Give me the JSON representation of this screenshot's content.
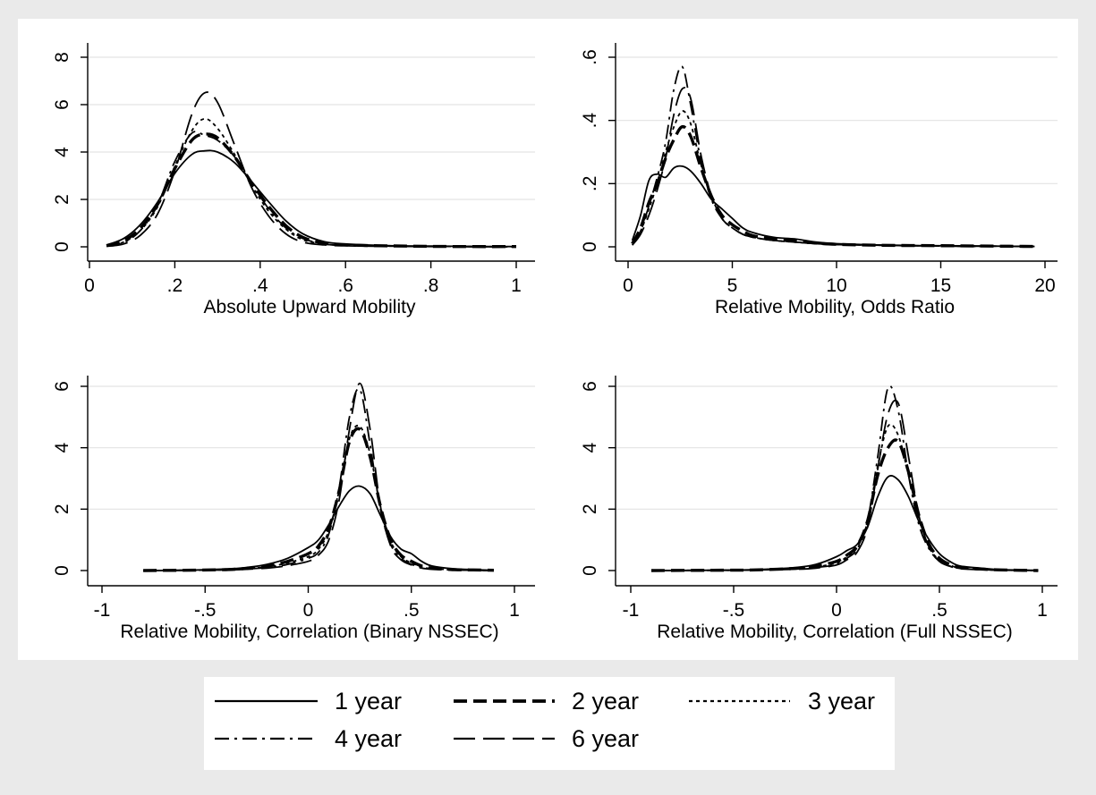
{
  "chart_data": [
    {
      "type": "line",
      "xlabel": "Absolute Upward Mobility",
      "ylabel": "",
      "xlim": [
        0,
        1
      ],
      "ylim": [
        0,
        8
      ],
      "xticks": [
        0,
        0.2,
        0.4,
        0.6,
        0.8,
        1
      ],
      "xtick_labels": [
        "0",
        ".2",
        ".4",
        ".6",
        ".8",
        "1"
      ],
      "yticks": [
        0,
        2,
        4,
        6,
        8
      ],
      "ytick_labels": [
        "0",
        "2",
        "4",
        "6",
        "8"
      ],
      "grid": "horizontal",
      "series": [
        {
          "name": "1 year",
          "x": [
            0.04,
            0.08,
            0.12,
            0.16,
            0.2,
            0.24,
            0.27,
            0.3,
            0.34,
            0.38,
            0.42,
            0.46,
            0.5,
            0.55,
            0.6,
            0.7,
            0.8,
            0.9,
            1.0
          ],
          "y": [
            0.08,
            0.35,
            0.95,
            1.9,
            3.1,
            3.9,
            4.05,
            4.0,
            3.55,
            2.75,
            1.9,
            1.1,
            0.55,
            0.22,
            0.12,
            0.05,
            0.03,
            0.02,
            0.01
          ]
        },
        {
          "name": "2 year",
          "x": [
            0.04,
            0.08,
            0.12,
            0.16,
            0.2,
            0.24,
            0.27,
            0.3,
            0.34,
            0.38,
            0.42,
            0.46,
            0.5,
            0.55,
            0.6,
            0.7,
            0.8,
            0.9,
            1.0
          ],
          "y": [
            0.05,
            0.25,
            0.8,
            1.8,
            3.3,
            4.5,
            4.75,
            4.6,
            3.8,
            2.7,
            1.7,
            0.9,
            0.4,
            0.15,
            0.08,
            0.04,
            0.02,
            0.01,
            0.01
          ]
        },
        {
          "name": "3 year",
          "x": [
            0.04,
            0.08,
            0.12,
            0.16,
            0.2,
            0.24,
            0.27,
            0.3,
            0.34,
            0.38,
            0.42,
            0.46,
            0.5,
            0.55,
            0.6,
            0.7,
            0.8,
            0.9,
            1.0
          ],
          "y": [
            0.04,
            0.2,
            0.7,
            1.7,
            3.4,
            4.9,
            5.4,
            5.0,
            3.9,
            2.6,
            1.5,
            0.75,
            0.3,
            0.12,
            0.06,
            0.03,
            0.02,
            0.01,
            0.0
          ]
        },
        {
          "name": "4 year",
          "x": [
            0.04,
            0.08,
            0.12,
            0.16,
            0.2,
            0.24,
            0.27,
            0.3,
            0.34,
            0.38,
            0.42,
            0.46,
            0.5,
            0.55,
            0.6,
            0.7,
            0.8,
            0.9,
            1.0
          ],
          "y": [
            0.03,
            0.18,
            0.7,
            1.8,
            3.6,
            4.8,
            4.7,
            4.5,
            3.8,
            2.7,
            1.6,
            0.8,
            0.35,
            0.12,
            0.06,
            0.03,
            0.02,
            0.01,
            0.0
          ]
        },
        {
          "name": "6 year",
          "x": [
            0.04,
            0.08,
            0.12,
            0.16,
            0.2,
            0.24,
            0.27,
            0.3,
            0.34,
            0.38,
            0.42,
            0.46,
            0.5,
            0.55,
            0.6,
            0.7,
            0.8,
            0.9,
            1.0
          ],
          "y": [
            0.02,
            0.12,
            0.5,
            1.4,
            3.2,
            5.6,
            6.5,
            6.1,
            4.3,
            2.5,
            1.3,
            0.55,
            0.2,
            0.08,
            0.04,
            0.02,
            0.01,
            0.0,
            0.0
          ]
        }
      ]
    },
    {
      "type": "line",
      "xlabel": "Relative Mobility, Odds Ratio",
      "ylabel": "",
      "xlim": [
        0,
        20
      ],
      "ylim": [
        0,
        0.6
      ],
      "xticks": [
        0,
        5,
        10,
        15,
        20
      ],
      "xtick_labels": [
        "0",
        "5",
        "10",
        "15",
        "20"
      ],
      "yticks": [
        0,
        0.2,
        0.4,
        0.6
      ],
      "ytick_labels": [
        "0",
        ".2",
        ".4",
        ".6"
      ],
      "grid": "horizontal",
      "series": [
        {
          "name": "1 year",
          "x": [
            0.2,
            0.6,
            1.0,
            1.4,
            1.8,
            2.2,
            2.6,
            3.0,
            3.5,
            4.0,
            4.5,
            5.0,
            5.5,
            6.0,
            7.0,
            8.0,
            9.0,
            10.0,
            12.0,
            14.0,
            16.0,
            18.0,
            19.5
          ],
          "y": [
            0.02,
            0.1,
            0.21,
            0.23,
            0.22,
            0.25,
            0.255,
            0.24,
            0.2,
            0.15,
            0.12,
            0.09,
            0.06,
            0.045,
            0.03,
            0.025,
            0.015,
            0.01,
            0.006,
            0.004,
            0.003,
            0.002,
            0.001
          ]
        },
        {
          "name": "2 year",
          "x": [
            0.2,
            0.6,
            1.0,
            1.4,
            1.8,
            2.2,
            2.6,
            3.0,
            3.5,
            4.0,
            4.5,
            5.0,
            5.5,
            6.0,
            7.0,
            8.0,
            9.0,
            10.0,
            12.0,
            14.0,
            16.0,
            18.0,
            19.5
          ],
          "y": [
            0.01,
            0.06,
            0.14,
            0.2,
            0.28,
            0.34,
            0.38,
            0.35,
            0.25,
            0.16,
            0.1,
            0.07,
            0.05,
            0.035,
            0.025,
            0.02,
            0.012,
            0.008,
            0.005,
            0.004,
            0.003,
            0.002,
            0.001
          ]
        },
        {
          "name": "3 year",
          "x": [
            0.2,
            0.6,
            1.0,
            1.4,
            1.8,
            2.2,
            2.6,
            3.0,
            3.5,
            4.0,
            4.5,
            5.0,
            5.5,
            6.0,
            7.0,
            8.0,
            9.0,
            10.0,
            12.0,
            14.0,
            16.0,
            18.0,
            19.5
          ],
          "y": [
            0.01,
            0.05,
            0.12,
            0.2,
            0.3,
            0.38,
            0.43,
            0.39,
            0.26,
            0.16,
            0.09,
            0.06,
            0.04,
            0.03,
            0.02,
            0.015,
            0.01,
            0.007,
            0.005,
            0.003,
            0.002,
            0.002,
            0.001
          ]
        },
        {
          "name": "4 year",
          "x": [
            0.2,
            0.6,
            1.0,
            1.4,
            1.8,
            2.2,
            2.6,
            3.0,
            3.5,
            4.0,
            4.5,
            5.0,
            5.5,
            6.0,
            7.0,
            8.0,
            9.0,
            10.0,
            12.0,
            14.0,
            16.0,
            18.0,
            19.5
          ],
          "y": [
            0.01,
            0.05,
            0.13,
            0.22,
            0.33,
            0.5,
            0.57,
            0.45,
            0.27,
            0.15,
            0.09,
            0.06,
            0.04,
            0.03,
            0.02,
            0.015,
            0.01,
            0.007,
            0.005,
            0.003,
            0.002,
            0.002,
            0.001
          ]
        },
        {
          "name": "6 year",
          "x": [
            0.2,
            0.6,
            1.0,
            1.4,
            1.8,
            2.2,
            2.6,
            3.0,
            3.5,
            4.0,
            4.5,
            5.0,
            5.5,
            6.0,
            7.0,
            8.0,
            9.0,
            10.0,
            12.0,
            14.0,
            16.0,
            18.0,
            19.5
          ],
          "y": [
            0.005,
            0.04,
            0.1,
            0.18,
            0.28,
            0.42,
            0.5,
            0.47,
            0.29,
            0.16,
            0.09,
            0.06,
            0.04,
            0.03,
            0.02,
            0.015,
            0.01,
            0.007,
            0.005,
            0.003,
            0.002,
            0.002,
            0.001
          ]
        }
      ]
    },
    {
      "type": "line",
      "xlabel": "Relative Mobility, Correlation (Binary NSSEC)",
      "ylabel": "",
      "xlim": [
        -1,
        1
      ],
      "ylim": [
        0,
        6
      ],
      "xticks": [
        -1,
        -0.5,
        0,
        0.5,
        1
      ],
      "xtick_labels": [
        "-1",
        "-.5",
        "0",
        ".5",
        "1"
      ],
      "yticks": [
        0,
        2,
        4,
        6
      ],
      "ytick_labels": [
        "0",
        "2",
        "4",
        "6"
      ],
      "grid": "horizontal",
      "series": [
        {
          "name": "1 year",
          "x": [
            -0.8,
            -0.6,
            -0.4,
            -0.3,
            -0.2,
            -0.1,
            0.0,
            0.05,
            0.1,
            0.15,
            0.2,
            0.25,
            0.3,
            0.35,
            0.4,
            0.45,
            0.5,
            0.55,
            0.6,
            0.7,
            0.8,
            0.9
          ],
          "y": [
            0.0,
            0.01,
            0.05,
            0.1,
            0.2,
            0.4,
            0.75,
            1.0,
            1.5,
            2.1,
            2.6,
            2.75,
            2.5,
            1.8,
            1.1,
            0.7,
            0.55,
            0.3,
            0.15,
            0.06,
            0.03,
            0.01
          ]
        },
        {
          "name": "2 year",
          "x": [
            -0.8,
            -0.6,
            -0.4,
            -0.3,
            -0.2,
            -0.1,
            0.0,
            0.05,
            0.1,
            0.15,
            0.2,
            0.25,
            0.3,
            0.35,
            0.4,
            0.45,
            0.5,
            0.55,
            0.6,
            0.7,
            0.8,
            0.9
          ],
          "y": [
            0.0,
            0.01,
            0.03,
            0.07,
            0.14,
            0.3,
            0.55,
            0.8,
            1.4,
            2.6,
            4.2,
            4.6,
            3.7,
            2.1,
            1.0,
            0.5,
            0.3,
            0.15,
            0.08,
            0.03,
            0.02,
            0.01
          ]
        },
        {
          "name": "3 year",
          "x": [
            -0.8,
            -0.6,
            -0.4,
            -0.3,
            -0.2,
            -0.1,
            0.0,
            0.05,
            0.1,
            0.15,
            0.2,
            0.25,
            0.3,
            0.35,
            0.4,
            0.45,
            0.5,
            0.55,
            0.6,
            0.7,
            0.8,
            0.9
          ],
          "y": [
            0.0,
            0.01,
            0.03,
            0.06,
            0.12,
            0.25,
            0.45,
            0.7,
            1.3,
            2.6,
            4.3,
            4.7,
            3.8,
            2.1,
            0.95,
            0.45,
            0.25,
            0.12,
            0.06,
            0.03,
            0.01,
            0.0
          ]
        },
        {
          "name": "4 year",
          "x": [
            -0.8,
            -0.6,
            -0.4,
            -0.3,
            -0.2,
            -0.1,
            0.0,
            0.05,
            0.1,
            0.15,
            0.2,
            0.25,
            0.3,
            0.35,
            0.4,
            0.45,
            0.5,
            0.55,
            0.6,
            0.7,
            0.8,
            0.9
          ],
          "y": [
            0.0,
            0.01,
            0.02,
            0.05,
            0.1,
            0.2,
            0.4,
            0.6,
            1.2,
            2.7,
            5.0,
            5.9,
            4.1,
            2.0,
            0.85,
            0.4,
            0.2,
            0.1,
            0.05,
            0.02,
            0.01,
            0.0
          ]
        },
        {
          "name": "6 year",
          "x": [
            -0.8,
            -0.6,
            -0.4,
            -0.3,
            -0.2,
            -0.1,
            0.0,
            0.05,
            0.1,
            0.15,
            0.2,
            0.25,
            0.3,
            0.35,
            0.4,
            0.45,
            0.5,
            0.55,
            0.6,
            0.7,
            0.8,
            0.9
          ],
          "y": [
            0.0,
            0.005,
            0.02,
            0.04,
            0.08,
            0.16,
            0.3,
            0.5,
            1.0,
            2.3,
            4.6,
            6.1,
            4.6,
            2.1,
            0.8,
            0.35,
            0.18,
            0.08,
            0.04,
            0.02,
            0.01,
            0.0
          ]
        }
      ]
    },
    {
      "type": "line",
      "xlabel": "Relative Mobility, Correlation (Full NSSEC)",
      "ylabel": "",
      "xlim": [
        -1,
        1
      ],
      "ylim": [
        0,
        6
      ],
      "xticks": [
        -1,
        -0.5,
        0,
        0.5,
        1
      ],
      "xtick_labels": [
        "-1",
        "-.5",
        "0",
        ".5",
        "1"
      ],
      "yticks": [
        0,
        2,
        4,
        6
      ],
      "ytick_labels": [
        "0",
        "2",
        "4",
        "6"
      ],
      "grid": "horizontal",
      "series": [
        {
          "name": "1 year",
          "x": [
            -0.9,
            -0.6,
            -0.4,
            -0.2,
            -0.1,
            0.0,
            0.05,
            0.1,
            0.15,
            0.2,
            0.25,
            0.3,
            0.35,
            0.4,
            0.45,
            0.5,
            0.55,
            0.6,
            0.7,
            0.8,
            0.98
          ],
          "y": [
            0.0,
            0.01,
            0.03,
            0.1,
            0.2,
            0.45,
            0.65,
            0.85,
            1.4,
            2.4,
            3.05,
            2.95,
            2.4,
            1.6,
            1.0,
            0.55,
            0.3,
            0.15,
            0.08,
            0.03,
            0.01
          ]
        },
        {
          "name": "2 year",
          "x": [
            -0.9,
            -0.6,
            -0.4,
            -0.2,
            -0.1,
            0.0,
            0.05,
            0.1,
            0.15,
            0.2,
            0.25,
            0.3,
            0.35,
            0.4,
            0.45,
            0.5,
            0.55,
            0.6,
            0.7,
            0.8,
            0.98
          ],
          "y": [
            0.0,
            0.01,
            0.02,
            0.07,
            0.15,
            0.3,
            0.5,
            0.8,
            1.6,
            3.1,
            4.0,
            4.2,
            3.2,
            1.8,
            0.85,
            0.4,
            0.2,
            0.1,
            0.05,
            0.02,
            0.0
          ]
        },
        {
          "name": "3 year",
          "x": [
            -0.9,
            -0.6,
            -0.4,
            -0.2,
            -0.1,
            0.0,
            0.05,
            0.1,
            0.15,
            0.2,
            0.25,
            0.3,
            0.35,
            0.4,
            0.45,
            0.5,
            0.55,
            0.6,
            0.7,
            0.8,
            0.98
          ],
          "y": [
            0.0,
            0.01,
            0.02,
            0.06,
            0.12,
            0.25,
            0.45,
            0.75,
            1.6,
            3.4,
            4.7,
            4.4,
            3.1,
            1.7,
            0.75,
            0.35,
            0.18,
            0.08,
            0.04,
            0.02,
            0.0
          ]
        },
        {
          "name": "4 year",
          "x": [
            -0.9,
            -0.6,
            -0.4,
            -0.2,
            -0.1,
            0.0,
            0.05,
            0.1,
            0.15,
            0.2,
            0.25,
            0.3,
            0.35,
            0.4,
            0.45,
            0.5,
            0.55,
            0.6,
            0.7,
            0.8,
            0.98
          ],
          "y": [
            0.0,
            0.005,
            0.02,
            0.05,
            0.1,
            0.2,
            0.4,
            0.7,
            1.6,
            3.7,
            5.95,
            5.2,
            3.1,
            1.5,
            0.7,
            0.3,
            0.15,
            0.07,
            0.03,
            0.01,
            0.0
          ]
        },
        {
          "name": "6 year",
          "x": [
            -0.9,
            -0.6,
            -0.4,
            -0.2,
            -0.1,
            0.0,
            0.05,
            0.1,
            0.15,
            0.2,
            0.25,
            0.3,
            0.35,
            0.4,
            0.45,
            0.5,
            0.55,
            0.6,
            0.7,
            0.8,
            0.98
          ],
          "y": [
            0.0,
            0.005,
            0.015,
            0.04,
            0.08,
            0.18,
            0.35,
            0.6,
            1.4,
            3.3,
            5.1,
            5.45,
            3.7,
            1.8,
            0.75,
            0.3,
            0.14,
            0.06,
            0.03,
            0.01,
            0.0
          ]
        }
      ]
    }
  ],
  "legend": {
    "placement": "bottom",
    "entries": [
      "1 year",
      "2 year",
      "3 year",
      "4 year",
      "6 year"
    ]
  },
  "style": {
    "background": "#eaeaea",
    "plot_background": "#ffffff",
    "grid_color": "#e3e3e3",
    "line_color": "#000000"
  }
}
